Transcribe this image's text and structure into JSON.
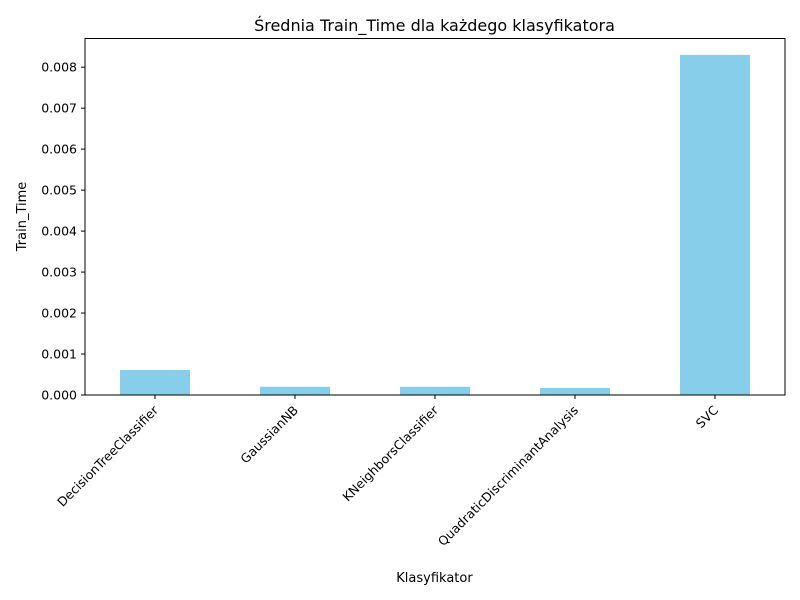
{
  "chart_data": {
    "type": "bar",
    "title": "Średnia Train_Time dla każdego klasyfikatora",
    "xlabel": "Klasyfikator",
    "ylabel": "Train_Time",
    "categories": [
      "DecisionTreeClassifier",
      "GaussianNB",
      "KNeighborsClassifier",
      "QuadraticDiscriminantAnalysis",
      "SVC"
    ],
    "values": [
      0.00061,
      0.0002,
      0.0002,
      0.00017,
      0.0083
    ],
    "ylim": [
      0,
      0.0087
    ],
    "yticks": [
      0.0,
      0.001,
      0.002,
      0.003,
      0.004,
      0.005,
      0.006,
      0.007,
      0.008
    ],
    "ytick_labels": [
      "0.000",
      "0.001",
      "0.002",
      "0.003",
      "0.004",
      "0.005",
      "0.006",
      "0.007",
      "0.008"
    ],
    "grid": false,
    "bar_color": "#87ceeb"
  }
}
